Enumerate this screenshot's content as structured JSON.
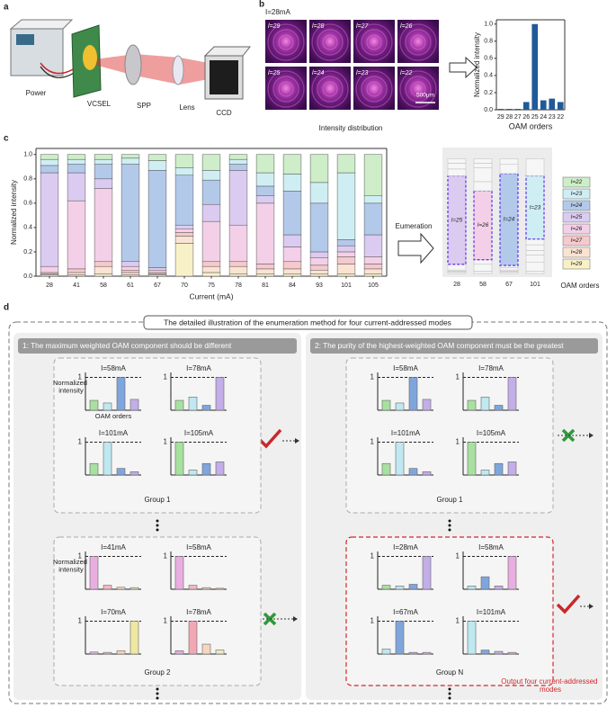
{
  "panel_a": {
    "label": "a",
    "components": [
      "Power",
      "VCSEL",
      "SPP",
      "Lens",
      "CCD"
    ]
  },
  "panel_b": {
    "label": "b",
    "current": "I=28mA",
    "images": [
      "l=29",
      "l=28",
      "l=27",
      "l=26",
      "l=25",
      "l=24",
      "l=23",
      "l=22"
    ],
    "scale_bar": "500μm",
    "caption": "Intensity distribution",
    "chart_data": {
      "type": "bar",
      "categories": [
        "29",
        "28",
        "27",
        "26",
        "25",
        "24",
        "23",
        "22"
      ],
      "values": [
        0.01,
        0.01,
        0.01,
        0.09,
        1.0,
        0.11,
        0.13,
        0.09
      ],
      "color": "#1f5a99",
      "ylabel": "Normalized intensity",
      "xlabel": "OAM orders",
      "ylim": [
        0,
        1.05
      ],
      "yticks": [
        {
          "value": 0,
          "label": "0.0"
        },
        {
          "value": 0.2,
          "label": "0.2"
        },
        {
          "value": 0.4,
          "label": "0.4"
        },
        {
          "value": 0.6,
          "label": "0.6"
        },
        {
          "value": 0.8,
          "label": "0.8"
        },
        {
          "value": 1,
          "label": "1.0"
        }
      ]
    }
  },
  "panel_c": {
    "label": "c",
    "chart_data": {
      "type": "stacked_bar",
      "categories": [
        "28",
        "41",
        "58",
        "61",
        "67",
        "70",
        "75",
        "78",
        "81",
        "84",
        "93",
        "101",
        "105"
      ],
      "series": [
        {
          "name": "l=29",
          "color": "#f8f1c8",
          "values": [
            0.01,
            0.01,
            0.02,
            0.01,
            0.01,
            0.27,
            0.03,
            0.02,
            0.02,
            0.02,
            0.02,
            0.02,
            0.02
          ]
        },
        {
          "name": "l=28",
          "color": "#fbe3d3",
          "values": [
            0.01,
            0.02,
            0.06,
            0.02,
            0.01,
            0.06,
            0.05,
            0.06,
            0.04,
            0.04,
            0.03,
            0.08,
            0.04
          ]
        },
        {
          "name": "l=27",
          "color": "#f6c9cc",
          "values": [
            0.01,
            0.03,
            0.04,
            0.02,
            0.01,
            0.03,
            0.04,
            0.04,
            0.04,
            0.06,
            0.04,
            0.06,
            0.04
          ]
        },
        {
          "name": "l=26",
          "color": "#f3d0e8",
          "values": [
            0.05,
            0.56,
            0.6,
            0.03,
            0.02,
            0.03,
            0.33,
            0.3,
            0.5,
            0.12,
            0.06,
            0.04,
            0.06
          ]
        },
        {
          "name": "l=25",
          "color": "#dccbf0",
          "values": [
            0.77,
            0.23,
            0.08,
            0.04,
            0.02,
            0.03,
            0.14,
            0.45,
            0.06,
            0.1,
            0.05,
            0.05,
            0.18
          ]
        },
        {
          "name": "l=24",
          "color": "#b3c9ea",
          "values": [
            0.06,
            0.07,
            0.12,
            0.8,
            0.8,
            0.41,
            0.2,
            0.05,
            0.08,
            0.36,
            0.4,
            0.05,
            0.26
          ]
        },
        {
          "name": "l=23",
          "color": "#cfeef4",
          "values": [
            0.05,
            0.04,
            0.04,
            0.05,
            0.08,
            0.06,
            0.08,
            0.04,
            0.11,
            0.14,
            0.17,
            0.55,
            0.06
          ]
        },
        {
          "name": "l=22",
          "color": "#cdeec8",
          "values": [
            0.04,
            0.04,
            0.04,
            0.03,
            0.05,
            0.11,
            0.13,
            0.04,
            0.15,
            0.16,
            0.23,
            0.15,
            0.34
          ]
        }
      ],
      "xlabel": "Current (mA)",
      "ylabel": "Normalized intensity",
      "ylim": [
        0,
        1.05
      ],
      "yticks": [
        {
          "value": 0,
          "label": "0.0"
        },
        {
          "value": 0.2,
          "label": "0.2"
        },
        {
          "value": 0.4,
          "label": "0.4"
        },
        {
          "value": 0.6,
          "label": "0.6"
        },
        {
          "value": 0.8,
          "label": "0.8"
        },
        {
          "value": 1,
          "label": "1.0"
        }
      ]
    },
    "enumeration": {
      "label": "Eumeration",
      "columns": [
        "28",
        "58",
        "67",
        "101"
      ],
      "selected": [
        "l=25",
        "l=26",
        "l=24",
        "l=23"
      ],
      "axis_label": "OAM orders"
    }
  },
  "panel_d": {
    "label": "d",
    "title": "The detailed illustration of the enumeration method for four current-addressed modes",
    "ylabel": "Normalized intensity",
    "xlabel": "OAM orders",
    "mini_ylim": [
      0,
      1.15
    ],
    "mini_yticks": [
      1
    ],
    "sections": [
      {
        "header": "1: The maximum weighted OAM component should be different",
        "groups": [
          {
            "name": "Group 1",
            "charts": [
              {
                "title": "I=58mA",
                "values": [
                  0.3,
                  0.22,
                  1,
                  0.33
                ],
                "colors": [
                  "#a8e0a0",
                  "#bfe8f0",
                  "#7fa6dc",
                  "#c3aee8"
                ]
              },
              {
                "title": "I=78mA",
                "values": [
                  0.3,
                  0.4,
                  0.15,
                  1
                ],
                "colors": [
                  "#a8e0a0",
                  "#bfe8f0",
                  "#7fa6dc",
                  "#c3aee8"
                ]
              },
              {
                "title": "I=101mA",
                "values": [
                  0.35,
                  1,
                  0.2,
                  0.1
                ],
                "colors": [
                  "#a8e0a0",
                  "#bfe8f0",
                  "#7fa6dc",
                  "#c3aee8"
                ]
              },
              {
                "title": "I=105mA",
                "values": [
                  1,
                  0.15,
                  0.35,
                  0.4
                ],
                "colors": [
                  "#a8e0a0",
                  "#bfe8f0",
                  "#7fa6dc",
                  "#c3aee8"
                ]
              }
            ]
          },
          {
            "name": "Group 2",
            "charts": [
              {
                "title": "I=41mA",
                "values": [
                  1,
                  0.12,
                  0.06,
                  0.05
                ],
                "colors": [
                  "#e9aee0",
                  "#f2b8c0",
                  "#f6d6c0",
                  "#efe8c0"
                ]
              },
              {
                "title": "I=58mA",
                "values": [
                  1,
                  0.12,
                  0.05,
                  0.03
                ],
                "colors": [
                  "#e9aee0",
                  "#f2b8c0",
                  "#f6d6c0",
                  "#efe8c0"
                ]
              },
              {
                "title": "I=70mA",
                "values": [
                  0.06,
                  0.05,
                  0.1,
                  1
                ],
                "colors": [
                  "#e9aee0",
                  "#f2b8c0",
                  "#f6d6c0",
                  "#efe8a0"
                ]
              },
              {
                "title": "I=78mA",
                "values": [
                  0.1,
                  1,
                  0.3,
                  0.12
                ],
                "colors": [
                  "#e9aee0",
                  "#f2a8b4",
                  "#f6d6c0",
                  "#efe8c0"
                ]
              }
            ]
          }
        ]
      },
      {
        "header": "2: The purity of the highest-weighted OAM component must be the greatest",
        "groups": [
          {
            "name": "Group 1",
            "charts": [
              {
                "title": "I=58mA",
                "values": [
                  0.3,
                  0.22,
                  1,
                  0.33
                ],
                "colors": [
                  "#a8e0a0",
                  "#bfe8f0",
                  "#7fa6dc",
                  "#c3aee8"
                ]
              },
              {
                "title": "I=78mA",
                "values": [
                  0.3,
                  0.4,
                  0.15,
                  1
                ],
                "colors": [
                  "#a8e0a0",
                  "#bfe8f0",
                  "#7fa6dc",
                  "#c3aee8"
                ]
              },
              {
                "title": "I=101mA",
                "values": [
                  0.35,
                  1,
                  0.2,
                  0.1
                ],
                "colors": [
                  "#a8e0a0",
                  "#bfe8f0",
                  "#7fa6dc",
                  "#c3aee8"
                ]
              },
              {
                "title": "I=105mA",
                "values": [
                  1,
                  0.15,
                  0.35,
                  0.4
                ],
                "colors": [
                  "#a8e0a0",
                  "#bfe8f0",
                  "#7fa6dc",
                  "#c3aee8"
                ]
              }
            ]
          },
          {
            "name": "Group N",
            "charts": [
              {
                "title": "I=28mA",
                "values": [
                  0.12,
                  0.1,
                  0.15,
                  1
                ],
                "colors": [
                  "#a8e0a0",
                  "#bfe8f0",
                  "#7fa6dc",
                  "#c3aee8"
                ]
              },
              {
                "title": "I=58mA",
                "values": [
                  0.1,
                  0.38,
                  0.1,
                  1
                ],
                "colors": [
                  "#bfe8f0",
                  "#7fa6dc",
                  "#c3aee8",
                  "#e9aee0"
                ]
              },
              {
                "title": "I=67mA",
                "values": [
                  0.15,
                  1,
                  0.05,
                  0.05
                ],
                "colors": [
                  "#bfe8f0",
                  "#7fa6dc",
                  "#c3aee8",
                  "#e9aee0"
                ]
              },
              {
                "title": "I=101mA",
                "values": [
                  1,
                  0.12,
                  0.08,
                  0.05
                ],
                "colors": [
                  "#bfe8f0",
                  "#7fa6dc",
                  "#c3aee8",
                  "#e9aee0"
                ]
              }
            ]
          }
        ],
        "note": "Output four current-addressed modes"
      }
    ]
  }
}
